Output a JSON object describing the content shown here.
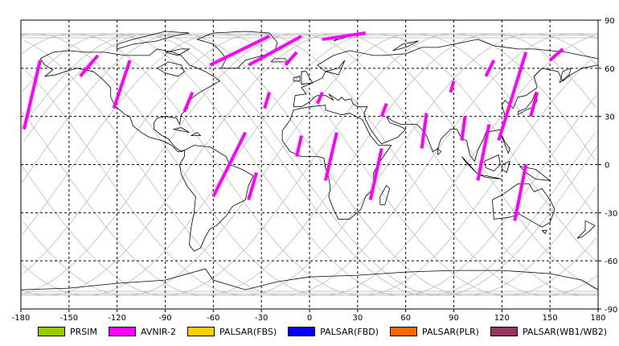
{
  "map": {
    "type": "satellite-ground-track-world-map",
    "lon_range": [
      -180,
      180
    ],
    "lat_range": [
      -90,
      90
    ],
    "x_ticks": [
      "-180",
      "-150",
      "-120",
      "-90",
      "-60",
      "-30",
      "0",
      "30",
      "60",
      "90",
      "120",
      "150",
      "180"
    ],
    "y_ticks": [
      "90",
      "60",
      "30",
      "0",
      "-30",
      "-60",
      "-90"
    ],
    "grid": "dashed black every 30 degrees",
    "colors": {
      "background": "#ffffff",
      "coastline": "#000000",
      "orbit_tracks": "#bbbbbb",
      "acquisition": "#ff00ff",
      "grid": "#000000"
    }
  },
  "legend": {
    "items": [
      {
        "label": "PRSIM",
        "color": "#99cc00"
      },
      {
        "label": "AVNIR-2",
        "color": "#ff00ff"
      },
      {
        "label": "PALSAR(FBS)",
        "color": "#ffcc00"
      },
      {
        "label": "PALSAR(FBD)",
        "color": "#0000ff"
      },
      {
        "label": "PALSAR(PLR)",
        "color": "#ff6600"
      },
      {
        "label": "PALSAR(WB1/WB2)",
        "color": "#993366"
      }
    ]
  },
  "chart_data": {
    "type": "map",
    "xlim": [
      -180,
      180
    ],
    "ylim": [
      -90,
      90
    ],
    "series": [
      {
        "name": "AVNIR-2",
        "segments": [
          [
            [
              -178,
              22
            ],
            [
              -168,
              65
            ]
          ],
          [
            [
              -143,
              55
            ],
            [
              -132,
              68
            ]
          ],
          [
            [
              -122,
              35
            ],
            [
              -112,
              65
            ]
          ],
          [
            [
              -78,
              33
            ],
            [
              -73,
              45
            ]
          ],
          [
            [
              -62,
              62
            ],
            [
              -25,
              80
            ]
          ],
          [
            [
              -38,
              62
            ],
            [
              -5,
              80
            ]
          ],
          [
            [
              -15,
              62
            ],
            [
              -8,
              70
            ]
          ],
          [
            [
              -28,
              35
            ],
            [
              -25,
              45
            ]
          ],
          [
            [
              -60,
              -20
            ],
            [
              -40,
              20
            ]
          ],
          [
            [
              -38,
              -22
            ],
            [
              -33,
              -5
            ]
          ],
          [
            [
              -8,
              5
            ],
            [
              -5,
              18
            ]
          ],
          [
            [
              10,
              -10
            ],
            [
              17,
              20
            ]
          ],
          [
            [
              5,
              38
            ],
            [
              8,
              45
            ]
          ],
          [
            [
              38,
              -22
            ],
            [
              45,
              10
            ]
          ],
          [
            [
              45,
              30
            ],
            [
              48,
              38
            ]
          ],
          [
            [
              8,
              78
            ],
            [
              35,
              82
            ]
          ],
          [
            [
              70,
              10
            ],
            [
              73,
              32
            ]
          ],
          [
            [
              88,
              45
            ],
            [
              90,
              52
            ]
          ],
          [
            [
              95,
              15
            ],
            [
              97,
              30
            ]
          ],
          [
            [
              105,
              -10
            ],
            [
              112,
              25
            ]
          ],
          [
            [
              110,
              55
            ],
            [
              115,
              65
            ]
          ],
          [
            [
              118,
              15
            ],
            [
              135,
              70
            ]
          ],
          [
            [
              128,
              -35
            ],
            [
              135,
              0
            ]
          ],
          [
            [
              138,
              30
            ],
            [
              142,
              45
            ]
          ],
          [
            [
              150,
              65
            ],
            [
              158,
              72
            ]
          ]
        ]
      }
    ]
  }
}
